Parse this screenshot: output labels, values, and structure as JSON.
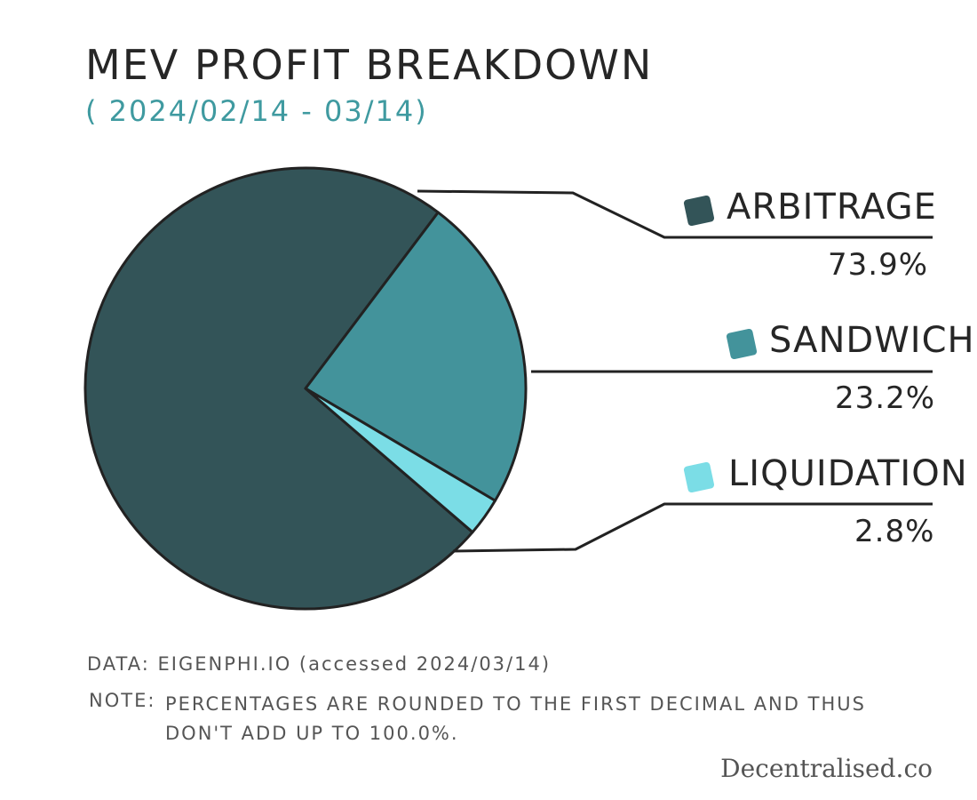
{
  "chart_data": {
    "type": "pie",
    "title": "MEV PROFIT BREAKDOWN",
    "subtitle": "( 2024/02/14 - 03/14)",
    "categories": [
      "ARBITRAGE",
      "SANDWICH",
      "LIQUIDATION"
    ],
    "values": [
      73.9,
      23.2,
      2.8
    ],
    "value_labels": [
      "73.9%",
      "23.2%",
      "2.8%"
    ],
    "colors": [
      "#335458",
      "#43939b",
      "#7bdde6"
    ],
    "legend_position": "right"
  },
  "footer": {
    "source": "DATA: EIGENPHI.IO (accessed 2024/03/14)",
    "note_label": "NOTE:",
    "note_text": "PERCENTAGES ARE ROUNDED TO THE FIRST DECIMAL AND THUS DON'T ADD UP TO 100.0%."
  },
  "brand": "Decentralised.co"
}
